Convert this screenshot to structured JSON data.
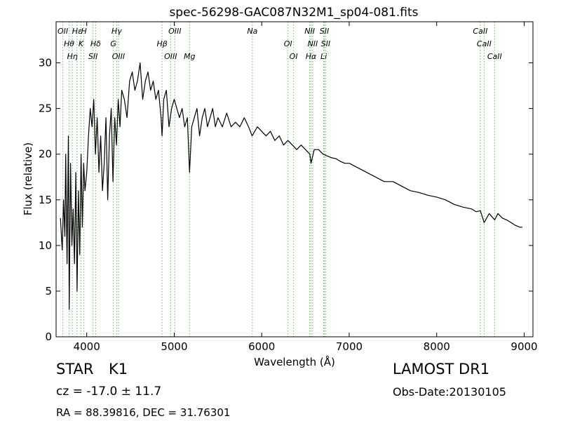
{
  "chart_data": {
    "type": "line",
    "title": "spec-56298-GAC087N32M1_sp04-081.fits",
    "xlabel": "Wavelength (Å)",
    "ylabel": "Flux (relative)",
    "xlim": [
      3650,
      9100
    ],
    "ylim": [
      0,
      34.5
    ],
    "xticks": [
      4000,
      5000,
      6000,
      7000,
      8000,
      9000
    ],
    "yticks": [
      0,
      5,
      10,
      15,
      20,
      25,
      30
    ],
    "grid": false,
    "series": [
      {
        "color": "#000000",
        "x": [
          3700,
          3720,
          3735,
          3750,
          3760,
          3775,
          3790,
          3800,
          3815,
          3830,
          3845,
          3860,
          3875,
          3890,
          3905,
          3920,
          3935,
          3950,
          3965,
          3980,
          4000,
          4020,
          4040,
          4060,
          4080,
          4100,
          4120,
          4140,
          4160,
          4180,
          4200,
          4220,
          4240,
          4260,
          4280,
          4300,
          4320,
          4340,
          4360,
          4380,
          4400,
          4430,
          4460,
          4490,
          4520,
          4550,
          4580,
          4610,
          4640,
          4670,
          4700,
          4730,
          4760,
          4790,
          4820,
          4850,
          4861,
          4880,
          4910,
          4940,
          4970,
          5000,
          5030,
          5060,
          5090,
          5120,
          5150,
          5175,
          5200,
          5230,
          5260,
          5290,
          5320,
          5350,
          5380,
          5410,
          5440,
          5470,
          5500,
          5550,
          5600,
          5650,
          5700,
          5750,
          5800,
          5850,
          5890,
          5950,
          6000,
          6050,
          6100,
          6150,
          6200,
          6250,
          6300,
          6350,
          6400,
          6450,
          6500,
          6550,
          6563,
          6600,
          6650,
          6700,
          6750,
          6800,
          6850,
          6900,
          6950,
          7000,
          7100,
          7200,
          7300,
          7400,
          7500,
          7600,
          7700,
          7800,
          7900,
          8000,
          8100,
          8200,
          8300,
          8400,
          8450,
          8500,
          8542,
          8600,
          8662,
          8700,
          8750,
          8800,
          8850,
          8900,
          8950,
          8980
        ],
        "y": [
          13,
          9.5,
          15,
          11,
          20,
          8,
          22,
          3,
          19,
          10,
          14,
          8,
          18,
          5,
          16,
          9,
          20,
          12,
          19,
          16,
          18,
          22,
          25,
          23,
          26,
          20,
          24,
          18,
          22,
          16,
          19,
          24,
          15,
          22,
          25,
          17,
          24,
          21,
          26,
          23,
          27,
          26,
          24,
          28,
          29,
          27,
          28,
          30,
          26,
          28,
          29,
          27,
          28,
          26,
          27,
          24,
          22,
          26,
          27,
          23,
          25,
          26,
          25,
          24,
          25,
          23,
          24,
          18,
          23,
          24,
          25,
          22,
          24,
          25,
          23,
          24,
          25,
          23,
          24,
          23,
          24.5,
          23,
          23.5,
          23,
          24,
          23,
          22,
          23,
          22.5,
          22,
          22.5,
          21.5,
          22,
          21,
          21.5,
          21,
          20.5,
          21,
          20.5,
          20,
          19,
          20.5,
          20.5,
          20,
          19.8,
          19.6,
          19.5,
          19.2,
          19,
          19,
          18.5,
          18,
          17.5,
          17,
          17,
          16.5,
          16,
          15.8,
          15.5,
          15.3,
          15,
          14.5,
          14.2,
          14,
          13.7,
          13.8,
          12.5,
          13.5,
          12.8,
          13.5,
          13,
          12.8,
          12.5,
          12.2,
          12,
          12
        ]
      }
    ],
    "lines": [
      {
        "label": "OII",
        "x": 3727
      },
      {
        "label": "Hθ",
        "x": 3798
      },
      {
        "label": "Hη",
        "x": 3835
      },
      {
        "label": "Hε",
        "x": 3889
      },
      {
        "label": "K",
        "x": 3934
      },
      {
        "label": "SII",
        "x": 4072
      },
      {
        "label": "H",
        "x": 3968
      },
      {
        "label": "Hδ",
        "x": 4102
      },
      {
        "label": "OIII",
        "x": 4363
      },
      {
        "label": "Hγ",
        "x": 4341
      },
      {
        "label": "G",
        "x": 4304
      },
      {
        "label": "OIII",
        "x": 4959
      },
      {
        "label": "OIII",
        "x": 5007
      },
      {
        "label": "Hβ",
        "x": 4861
      },
      {
        "label": "Mg",
        "x": 5175
      },
      {
        "label": "Na",
        "x": 5893
      },
      {
        "label": "OI",
        "x": 6300
      },
      {
        "label": "OI",
        "x": 6364
      },
      {
        "label": "NII",
        "x": 6548
      },
      {
        "label": "NII",
        "x": 6583
      },
      {
        "label": "Hα",
        "x": 6563
      },
      {
        "label": "SII",
        "x": 6716
      },
      {
        "label": "SII",
        "x": 6731
      },
      {
        "label": "Li",
        "x": 6708
      },
      {
        "label": "CaII",
        "x": 8498
      },
      {
        "label": "CaII",
        "x": 8542
      },
      {
        "label": "CaII",
        "x": 8662
      }
    ]
  },
  "info": {
    "object_class": "STAR",
    "subclass": "K1",
    "redshift": "cz = -17.0 ± 11.7",
    "coordinates": "RA = 88.39816, DEC = 31.76301",
    "survey": "LAMOST DR1",
    "obs_date": "Obs-Date:20130105"
  }
}
